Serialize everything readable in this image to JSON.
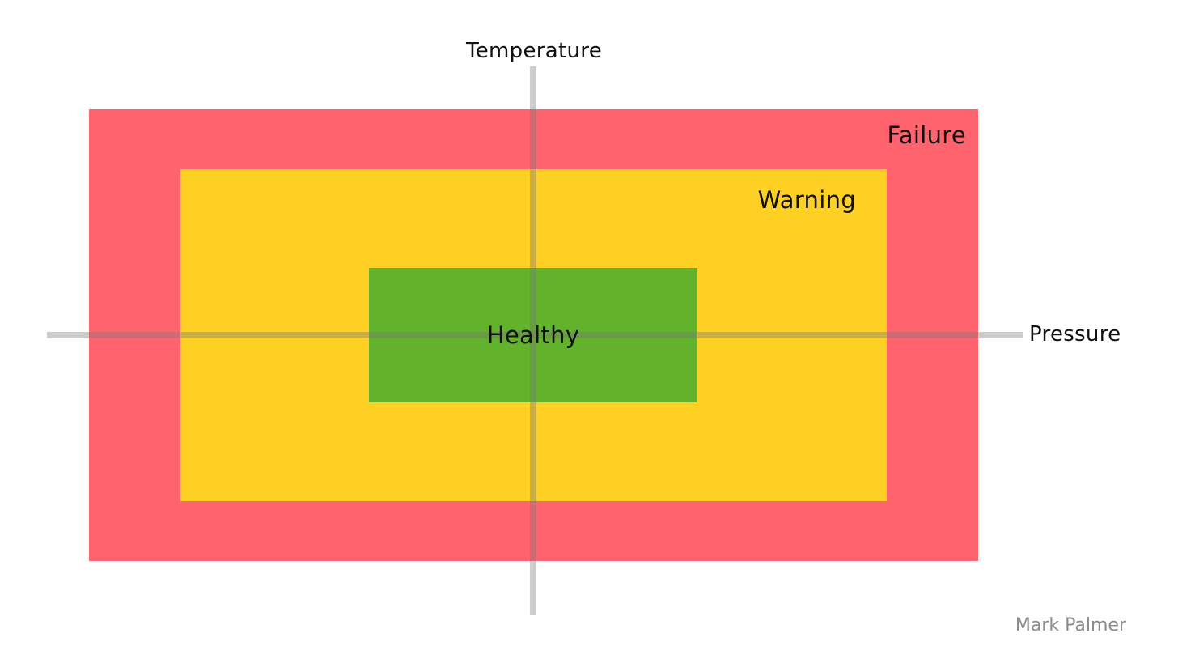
{
  "axes": {
    "vertical_label": "Temperature",
    "horizontal_label": "Pressure"
  },
  "zones": {
    "failure": {
      "label": "Failure",
      "color": "#ff646e"
    },
    "warning": {
      "label": "Warning",
      "color": "#fdd023"
    },
    "healthy": {
      "label": "Healthy",
      "color": "#62b22b"
    }
  },
  "credit": {
    "text": "Mark Palmer",
    "color": "#8a8a8a"
  }
}
